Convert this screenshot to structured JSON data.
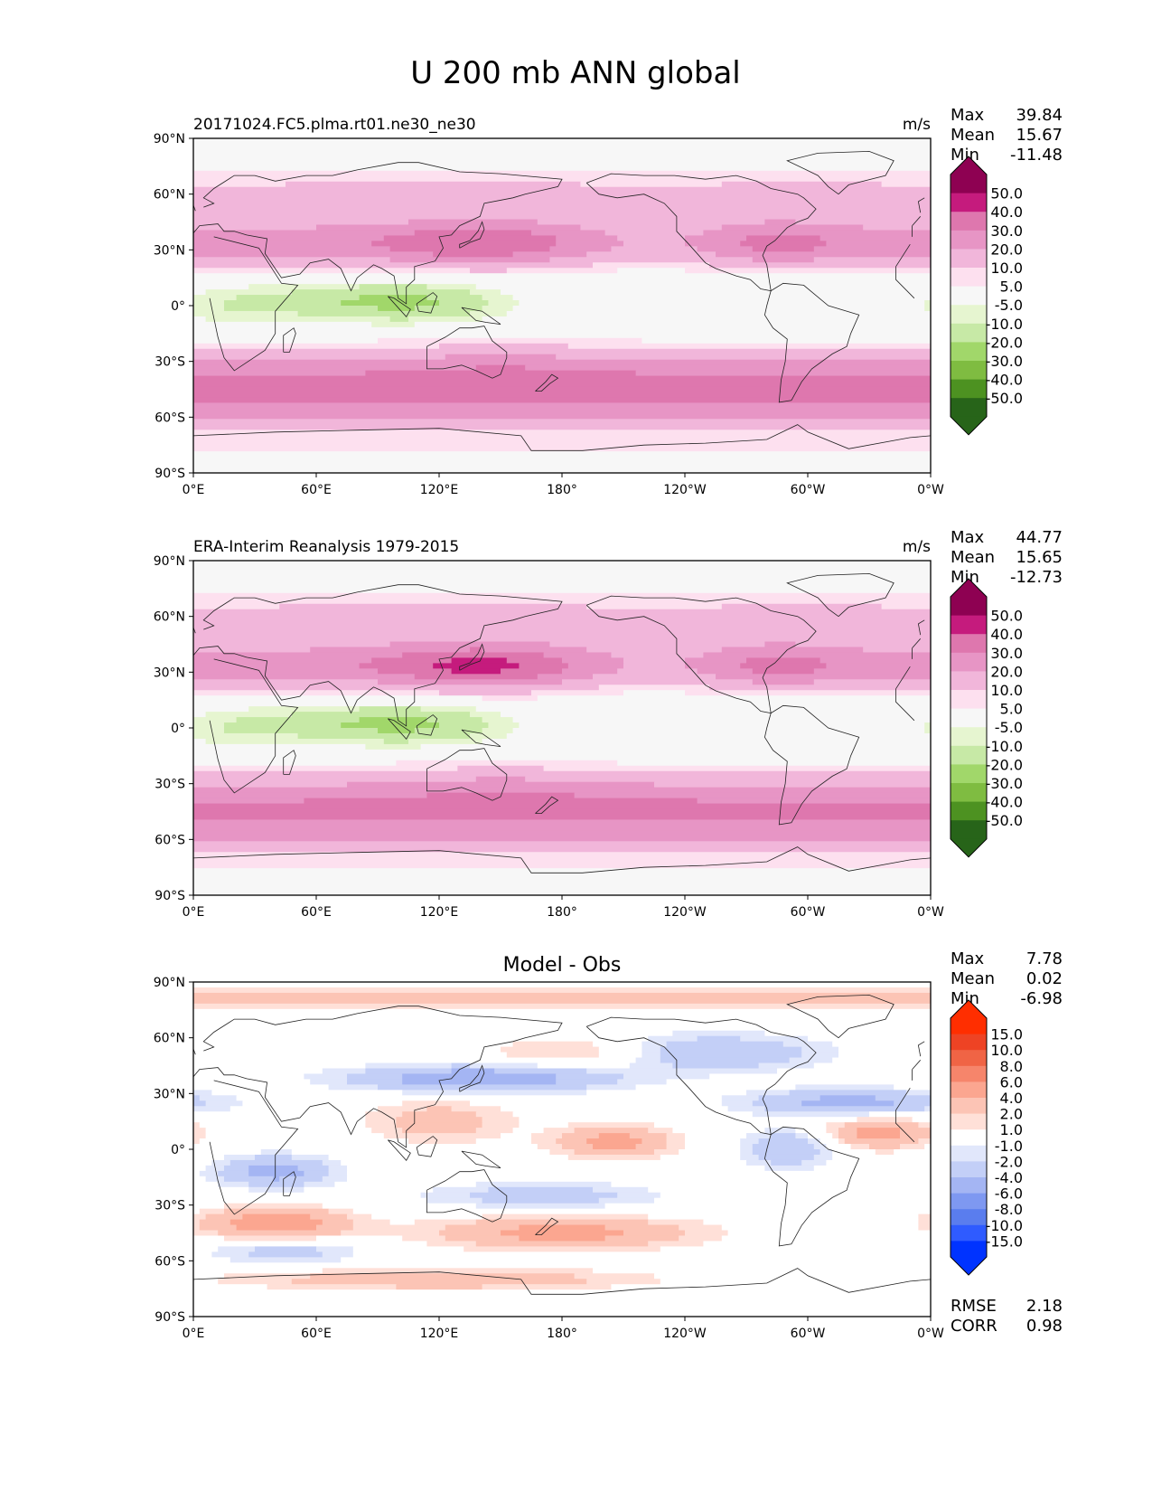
{
  "figure": {
    "title": "U 200 mb ANN global"
  },
  "colors": {
    "pink_scale": [
      "#276419",
      "#4d9221",
      "#7fbc41",
      "#a1d76a",
      "#c7e9a6",
      "#e6f5d0",
      "#f7f7f7",
      "#fde0ef",
      "#f7c4df",
      "#f1b6da",
      "#e795c5",
      "#de77ae",
      "#d4579f",
      "#c51b7d",
      "#8e0152"
    ],
    "diff_scale": [
      "#0033ff",
      "#2f5bff",
      "#5a7dee",
      "#7e98f1",
      "#a4b5f3",
      "#c3cff7",
      "#e1e7fb",
      "#ffffff",
      "#ffe0d8",
      "#fcc4b5",
      "#fba690",
      "#f6856b",
      "#f06445",
      "#ee4324",
      "#ff2e00"
    ]
  },
  "chart_data": [
    {
      "type": "heatmap",
      "id": "test",
      "title_left": "20171024.FC5.plma.rt01.ne30_ne30",
      "units": "m/s",
      "stats": [
        {
          "label": "Max",
          "value": "39.84"
        },
        {
          "label": "Mean",
          "value": "15.67"
        },
        {
          "label": "Min",
          "value": "-11.48"
        }
      ],
      "colorbar_levels": [
        "50.0",
        "40.0",
        "30.0",
        "20.0",
        "10.0",
        "5.0",
        "-5.0",
        "-10.0",
        "-20.0",
        "-30.0",
        "-40.0",
        "-50.0"
      ],
      "x_ticks": [
        "0°E",
        "60°E",
        "120°E",
        "180°",
        "120°W",
        "60°W",
        "0°W"
      ],
      "y_ticks": [
        "90°N",
        "60°N",
        "30°N",
        "0°",
        "30°S",
        "60°S",
        "90°S"
      ],
      "xlim": [
        0,
        360
      ],
      "ylim": [
        -90,
        90
      ]
    },
    {
      "type": "heatmap",
      "id": "reference",
      "title_left": "ERA-Interim Reanalysis 1979-2015",
      "units": "m/s",
      "stats": [
        {
          "label": "Max",
          "value": "44.77"
        },
        {
          "label": "Mean",
          "value": "15.65"
        },
        {
          "label": "Min",
          "value": "-12.73"
        }
      ],
      "colorbar_levels": [
        "50.0",
        "40.0",
        "30.0",
        "20.0",
        "10.0",
        "5.0",
        "-5.0",
        "-10.0",
        "-20.0",
        "-30.0",
        "-40.0",
        "-50.0"
      ],
      "x_ticks": [
        "0°E",
        "60°E",
        "120°E",
        "180°",
        "120°W",
        "60°W",
        "0°W"
      ],
      "y_ticks": [
        "90°N",
        "60°N",
        "30°N",
        "0°",
        "30°S",
        "60°S",
        "90°S"
      ],
      "xlim": [
        0,
        360
      ],
      "ylim": [
        -90,
        90
      ]
    },
    {
      "type": "heatmap",
      "id": "diff",
      "title_center": "Model - Obs",
      "stats": [
        {
          "label": "Max",
          "value": "7.78"
        },
        {
          "label": "Mean",
          "value": "0.02"
        },
        {
          "label": "Min",
          "value": "-6.98"
        }
      ],
      "colorbar_levels": [
        "15.0",
        "10.0",
        "8.0",
        "6.0",
        "4.0",
        "2.0",
        "1.0",
        "-1.0",
        "-2.0",
        "-4.0",
        "-6.0",
        "-8.0",
        "-10.0",
        "-15.0"
      ],
      "x_ticks": [
        "0°E",
        "60°E",
        "120°E",
        "180°",
        "120°W",
        "60°W",
        "0°W"
      ],
      "y_ticks": [
        "90°N",
        "60°N",
        "30°N",
        "0°",
        "30°S",
        "60°S",
        "90°S"
      ],
      "xlim": [
        0,
        360
      ],
      "ylim": [
        -90,
        90
      ],
      "metrics": [
        {
          "label": "RMSE",
          "value": "2.18"
        },
        {
          "label": "CORR",
          "value": "0.98"
        }
      ]
    }
  ]
}
